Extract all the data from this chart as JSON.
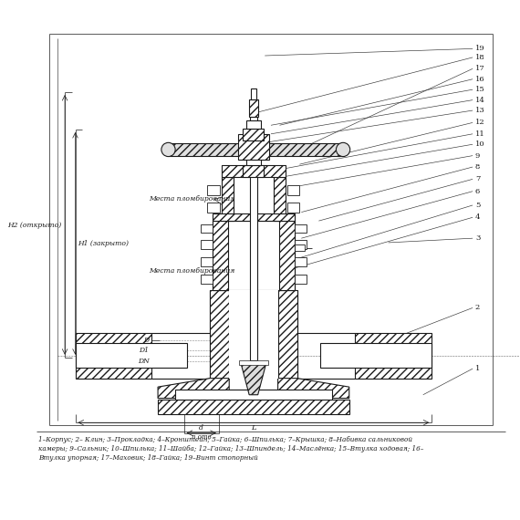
{
  "bg_color": "#ffffff",
  "line_color": "#1a1a1a",
  "fig_width": 5.7,
  "fig_height": 5.7,
  "dpi": 100,
  "caption_lines": [
    "1–Корпус; 2– Клин; 3–Прокладка; 4–Кронштейн; 5–Гайка; 6–Шпилька; 7–Крышка; 8–Набивка сальниковой",
    "камеры; 9–Сальник; 10–Шпилька; 11–Шайба; 12–Гайка; 13–Шпиндель; 14–Маслёнка; 15–Втулка ходовая; 16–",
    "Втулка упорная; 17–Маховик; 18–Гайка; 19–Винт стопорный"
  ]
}
